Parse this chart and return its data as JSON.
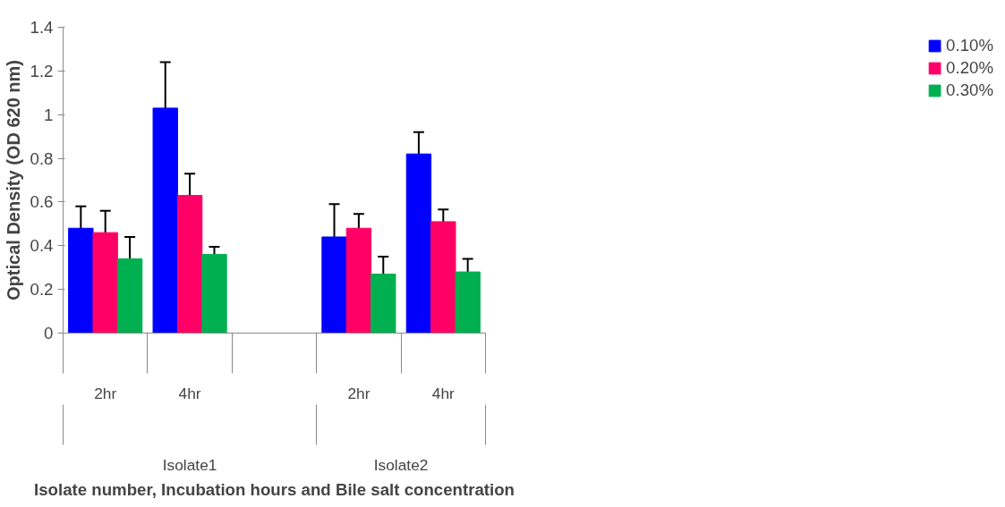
{
  "chart_data": {
    "type": "bar",
    "xlabel": "Isolate number, Incubation hours and Bile salt concentration",
    "ylabel": "Optical Density (OD 620 nm)",
    "categories": [
      "2hr",
      "4hr",
      null,
      "2hr",
      "4hr"
    ],
    "annotations": [
      "Isolate1",
      "Isolate2"
    ],
    "series": [
      {
        "name": "0.10%",
        "color": "#0000ff",
        "values": [
          0.48,
          1.03,
          null,
          0.44,
          0.82
        ],
        "errors": [
          0.1,
          0.21,
          null,
          0.15,
          0.1
        ]
      },
      {
        "name": "0.20%",
        "color": "#ff0066",
        "values": [
          0.46,
          0.63,
          null,
          0.48,
          0.51
        ],
        "errors": [
          0.1,
          0.1,
          null,
          0.065,
          0.056
        ]
      },
      {
        "name": "0.30%",
        "color": "#00b050",
        "values": [
          0.34,
          0.36,
          null,
          0.27,
          0.28
        ],
        "errors": [
          0.1,
          0.035,
          null,
          0.08,
          0.06
        ]
      }
    ],
    "ylim": [
      0,
      1.4
    ],
    "yticks": [
      0,
      0.2,
      0.4,
      0.6,
      0.8,
      1,
      1.2,
      1.4
    ],
    "legend": "right",
    "grid": false
  }
}
